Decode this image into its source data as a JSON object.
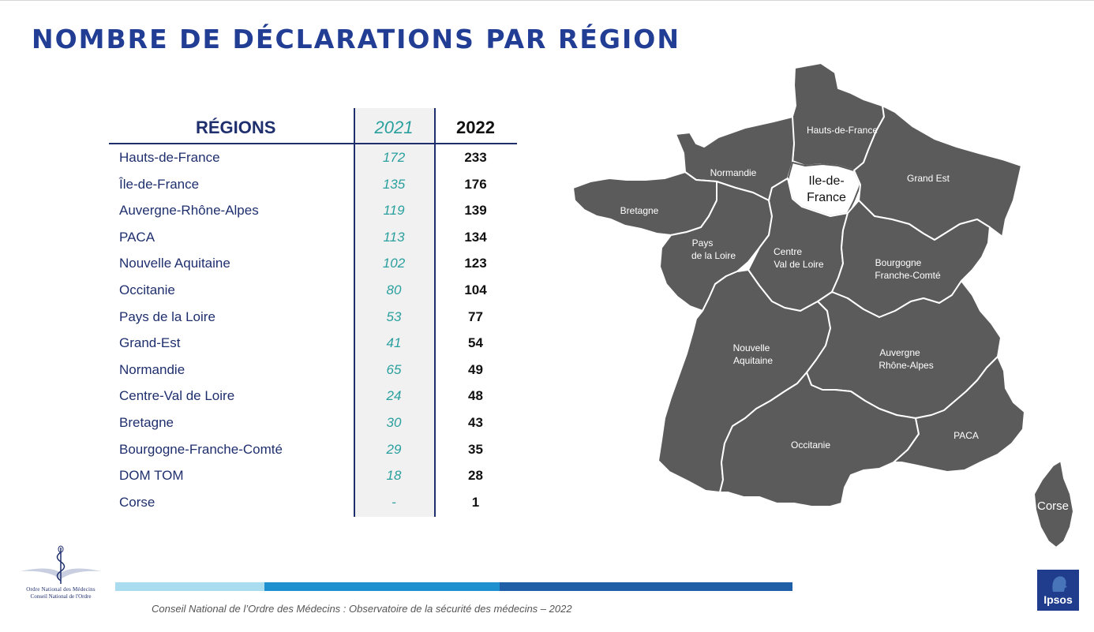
{
  "title": "NOMBRE DE DÉCLARATIONS PAR RÉGION",
  "table": {
    "headers": {
      "region": "RÉGIONS",
      "y2021": "2021",
      "y2022": "2022"
    },
    "rows": [
      {
        "name": "Hauts-de-France",
        "v2021": "172",
        "v2022": "233"
      },
      {
        "name": "Île-de-France",
        "v2021": "135",
        "v2022": "176"
      },
      {
        "name": "Auvergne-Rhône-Alpes",
        "v2021": "119",
        "v2022": "139"
      },
      {
        "name": "PACA",
        "v2021": "113",
        "v2022": "134"
      },
      {
        "name": "Nouvelle Aquitaine",
        "v2021": "102",
        "v2022": "123"
      },
      {
        "name": "Occitanie",
        "v2021": "80",
        "v2022": "104"
      },
      {
        "name": "Pays de la Loire",
        "v2021": "53",
        "v2022": "77"
      },
      {
        "name": "Grand-Est",
        "v2021": "41",
        "v2022": "54"
      },
      {
        "name": "Normandie",
        "v2021": "65",
        "v2022": "49"
      },
      {
        "name": "Centre-Val de Loire",
        "v2021": "24",
        "v2022": "48"
      },
      {
        "name": "Bretagne",
        "v2021": "30",
        "v2022": "43"
      },
      {
        "name": "Bourgogne-Franche-Comté",
        "v2021": "29",
        "v2022": "35"
      },
      {
        "name": "DOM TOM",
        "v2021": "18",
        "v2022": "28"
      },
      {
        "name": "Corse",
        "v2021": "-",
        "v2022": "1"
      }
    ]
  },
  "map": {
    "labels": {
      "hauts_de_france": "Hauts-de-France",
      "normandie": "Normandie",
      "ile_de_france_1": "Ile-de-",
      "ile_de_france_2": "France",
      "grand_est": "Grand Est",
      "bretagne": "Bretagne",
      "pays_loire_1": "Pays",
      "pays_loire_2": "de la Loire",
      "centre_1": "Centre",
      "centre_2": "Val de Loire",
      "bourgogne_1": "Bourgogne",
      "bourgogne_2": "Franche-Comté",
      "nouvelle_aquitaine_1": "Nouvelle",
      "nouvelle_aquitaine_2": "Aquitaine",
      "auvergne_1": "Auvergne",
      "auvergne_2": "Rhône-Alpes",
      "occitanie": "Occitanie",
      "paca": "PACA",
      "corse": "Corse"
    },
    "colors": {
      "region_fill": "#5b5b5b",
      "border": "#ffffff",
      "highlight_fill": "#ffffff"
    }
  },
  "logos": {
    "onm_line1": "Ordre National des Médecins",
    "onm_line2": "Conseil National de l'Ordre",
    "ipsos": "Ipsos"
  },
  "footer": "Conseil National de l’Ordre des Médecins : Observatoire de la sécurité des médecins – 2022"
}
